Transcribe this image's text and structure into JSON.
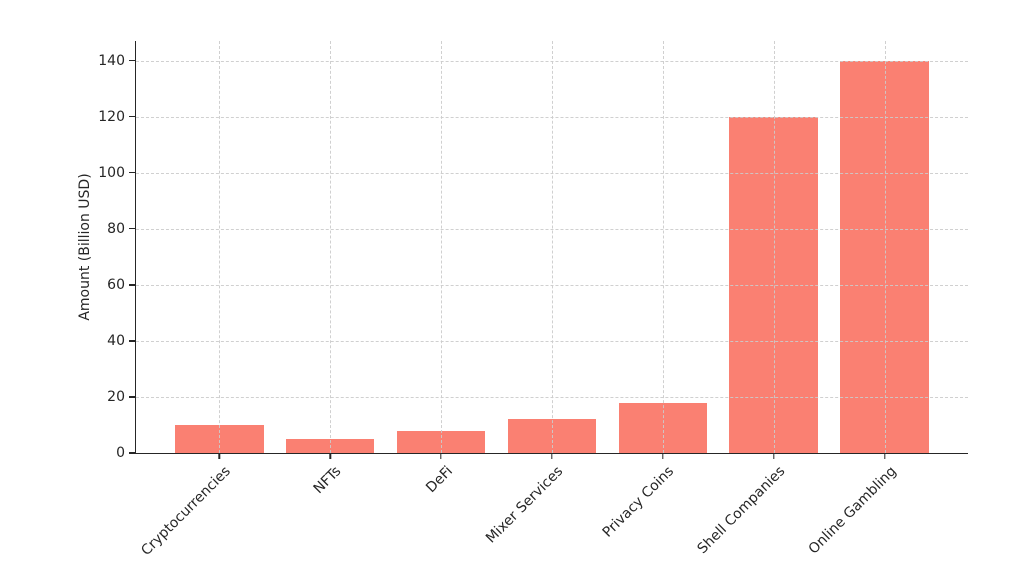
{
  "chart_data": {
    "type": "bar",
    "categories": [
      "Cryptocurrencies",
      "NFTs",
      "DeFi",
      "Mixer Services",
      "Privacy Coins",
      "Shell Companies",
      "Online Gambling"
    ],
    "values": [
      10,
      5,
      8,
      12,
      18,
      120,
      140
    ],
    "title": "",
    "xlabel": "",
    "ylabel": "Amount (Billion USD)",
    "ylim": [
      0,
      147
    ],
    "yticks": [
      0,
      20,
      40,
      60,
      80,
      100,
      120,
      140
    ],
    "legend": "none",
    "grid": "dashed, both axes, drawn above bars",
    "colors": {
      "bar": "#FA8072",
      "grid": "#cbcbcb",
      "axis": "#262626",
      "background": "#ffffff"
    }
  }
}
